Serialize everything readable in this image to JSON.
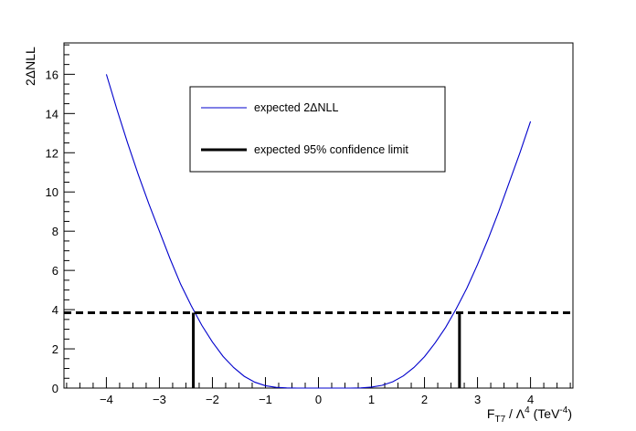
{
  "chart_data": {
    "type": "line",
    "title": "",
    "xlabel": {
      "main": "F",
      "sub": "T7",
      "mid": " / Λ",
      "sup": "4",
      "unit_pre": " (TeV",
      "unit_sup": "-4",
      "unit_post": ")"
    },
    "ylabel": "2ΔNLL",
    "xlim": [
      -4.8,
      4.8
    ],
    "ylim": [
      0,
      17.6
    ],
    "x_ticks": [
      -4,
      -3,
      -2,
      -1,
      0,
      1,
      2,
      3,
      4
    ],
    "y_ticks": [
      0,
      2,
      4,
      6,
      8,
      10,
      12,
      14,
      16
    ],
    "series": [
      {
        "name": "expected 2ΔNLL",
        "color": "#0000cc",
        "x": [
          -4.0,
          -3.8,
          -3.6,
          -3.4,
          -3.2,
          -3.0,
          -2.8,
          -2.6,
          -2.4,
          -2.2,
          -2.0,
          -1.8,
          -1.6,
          -1.4,
          -1.2,
          -1.0,
          -0.8,
          -0.6,
          -0.4,
          -0.2,
          0.0,
          0.2,
          0.4,
          0.6,
          0.8,
          1.0,
          1.2,
          1.4,
          1.6,
          1.8,
          2.0,
          2.2,
          2.4,
          2.6,
          2.8,
          3.0,
          3.2,
          3.4,
          3.6,
          3.8,
          4.0
        ],
        "y": [
          16.0,
          14.2,
          12.5,
          10.9,
          9.4,
          8.0,
          6.6,
          5.3,
          4.2,
          3.2,
          2.35,
          1.62,
          1.05,
          0.6,
          0.3,
          0.12,
          0.04,
          0.01,
          0.0,
          0.0,
          0.0,
          0.0,
          0.0,
          0.0,
          0.01,
          0.05,
          0.14,
          0.32,
          0.62,
          1.05,
          1.6,
          2.3,
          3.1,
          4.05,
          5.1,
          6.3,
          7.6,
          9.0,
          10.5,
          12.0,
          13.6
        ]
      }
    ],
    "threshold": {
      "name": "expected 95% confidence limit",
      "y": 3.84,
      "style": "dashed",
      "color": "#000000"
    },
    "limits": [
      {
        "x": -2.36
      },
      {
        "x": 2.66
      }
    ],
    "legend": {
      "position": "top-center",
      "entries": [
        "expected 2ΔNLL",
        "expected 95% confidence limit"
      ]
    }
  }
}
